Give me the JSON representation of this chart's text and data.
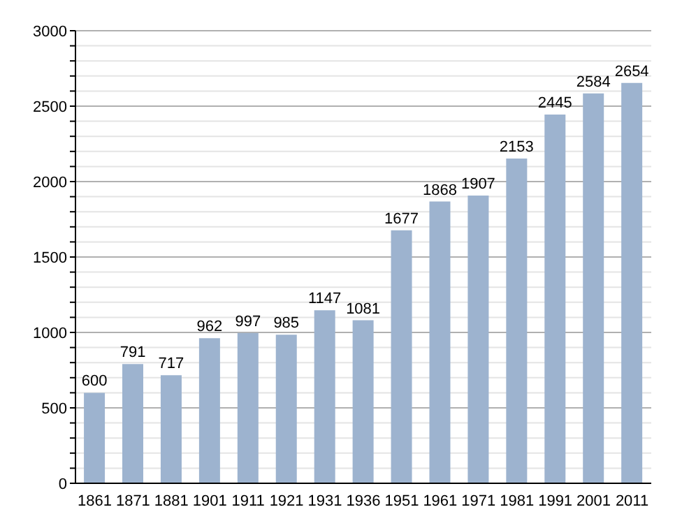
{
  "chart_data": {
    "type": "bar",
    "categories": [
      "1861",
      "1871",
      "1881",
      "1901",
      "1911",
      "1921",
      "1931",
      "1936",
      "1951",
      "1961",
      "1971",
      "1981",
      "1991",
      "2001",
      "2011"
    ],
    "values": [
      600,
      791,
      717,
      962,
      997,
      985,
      1147,
      1081,
      1677,
      1868,
      1907,
      2153,
      2445,
      2584,
      2654
    ],
    "color": "#9db3cf",
    "data_labels": true,
    "grid": "y",
    "ylim": [
      0,
      3000
    ],
    "yticks": [
      0,
      {
        "value": 100,
        "label": null
      },
      {
        "value": 200,
        "label": null
      },
      {
        "value": 300,
        "label": null
      },
      {
        "value": 400,
        "label": null
      },
      500,
      {
        "value": 600,
        "label": null
      },
      {
        "value": 700,
        "label": null
      },
      {
        "value": 800,
        "label": null
      },
      {
        "value": 900,
        "label": null
      },
      1000,
      {
        "value": 1100,
        "label": null
      },
      {
        "value": 1200,
        "label": null
      },
      {
        "value": 1300,
        "label": null
      },
      {
        "value": 1400,
        "label": null
      },
      1500,
      {
        "value": 1600,
        "label": null
      },
      {
        "value": 1700,
        "label": null
      },
      {
        "value": 1800,
        "label": null
      },
      {
        "value": 1900,
        "label": null
      },
      2000,
      {
        "value": 2100,
        "label": null
      },
      {
        "value": 2200,
        "label": null
      },
      {
        "value": 2300,
        "label": null
      },
      {
        "value": 2400,
        "label": null
      },
      2500,
      {
        "value": 2600,
        "label": null
      },
      {
        "value": 2700,
        "label": null
      },
      {
        "value": 2800,
        "label": null
      },
      {
        "value": 2900,
        "label": null
      },
      3000
    ]
  }
}
